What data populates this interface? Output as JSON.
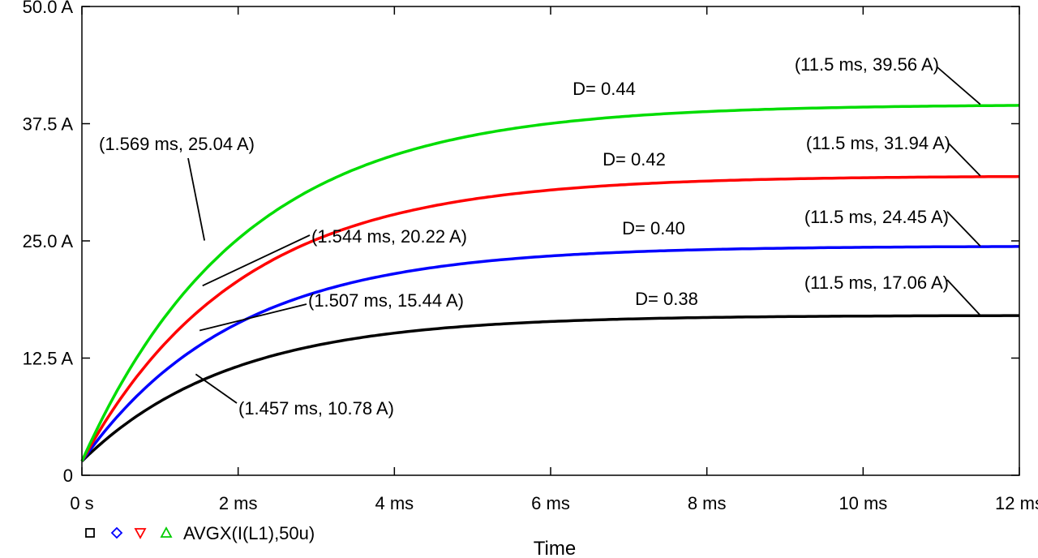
{
  "chart_data": {
    "type": "line",
    "xlabel": "Time",
    "ylabel": "",
    "xlim": [
      0,
      12
    ],
    "ylim": [
      0,
      50
    ],
    "x_ticks": [
      0,
      2,
      4,
      6,
      8,
      10,
      12
    ],
    "x_tick_labels": [
      "0 s",
      "2 ms",
      "4 ms",
      "6 ms",
      "8 ms",
      "10 ms",
      "12 ms"
    ],
    "y_ticks": [
      0,
      12.5,
      25,
      37.5,
      50
    ],
    "y_tick_labels": [
      "0",
      "12.5 A",
      "25.0 A",
      "37.5 A",
      "50.0 A"
    ],
    "grid": false,
    "legend": {
      "position": "bottom-left",
      "label": "AVGX(I(L1),50u)",
      "markers": [
        {
          "shape": "square",
          "color": "#000000"
        },
        {
          "shape": "diamond",
          "color": "#0000ff"
        },
        {
          "shape": "triangle-down",
          "color": "#ff0000"
        },
        {
          "shape": "triangle-up",
          "color": "#00cc00"
        }
      ]
    },
    "series": [
      {
        "name": "D= 0.38",
        "color": "#000000",
        "tau": 1.9,
        "start": 1.5,
        "points": [
          [
            0,
            1.5
          ],
          [
            1.457,
            10.78
          ],
          [
            11.5,
            17.06
          ]
        ],
        "final": 17.06,
        "annotations": [
          {
            "label": "(1.457 ms, 10.78 A)",
            "x": 1.457,
            "y": 10.78
          },
          {
            "label": "(11.5 ms, 17.06 A)",
            "x": 11.5,
            "y": 17.06
          }
        ]
      },
      {
        "name": "D= 0.40",
        "color": "#0000ff",
        "tau": 1.95,
        "start": 1.5,
        "points": [
          [
            0,
            1.5
          ],
          [
            1.507,
            15.44
          ],
          [
            11.5,
            24.45
          ]
        ],
        "final": 24.45,
        "annotations": [
          {
            "label": "(1.507 ms, 15.44 A)",
            "x": 1.507,
            "y": 15.44
          },
          {
            "label": "(11.5 ms, 24.45 A)",
            "x": 11.5,
            "y": 24.45
          }
        ]
      },
      {
        "name": "D= 0.42",
        "color": "#ff0000",
        "tau": 2.0,
        "start": 1.5,
        "points": [
          [
            0,
            1.5
          ],
          [
            1.544,
            20.22
          ],
          [
            11.5,
            31.94
          ]
        ],
        "final": 31.94,
        "annotations": [
          {
            "label": "(1.544 ms, 20.22 A)",
            "x": 1.544,
            "y": 20.22
          },
          {
            "label": "(11.5 ms, 31.94 A)",
            "x": 11.5,
            "y": 31.94
          }
        ]
      },
      {
        "name": "D= 0.44",
        "color": "#00dd00",
        "tau": 2.05,
        "start": 1.5,
        "points": [
          [
            0,
            1.5
          ],
          [
            1.569,
            25.04
          ],
          [
            11.5,
            39.56
          ]
        ],
        "final": 39.56,
        "annotations": [
          {
            "label": "(1.569 ms, 25.04 A)",
            "x": 1.569,
            "y": 25.04
          },
          {
            "label": "(11.5 ms, 39.56 A)",
            "x": 11.5,
            "y": 39.56
          }
        ]
      }
    ]
  }
}
